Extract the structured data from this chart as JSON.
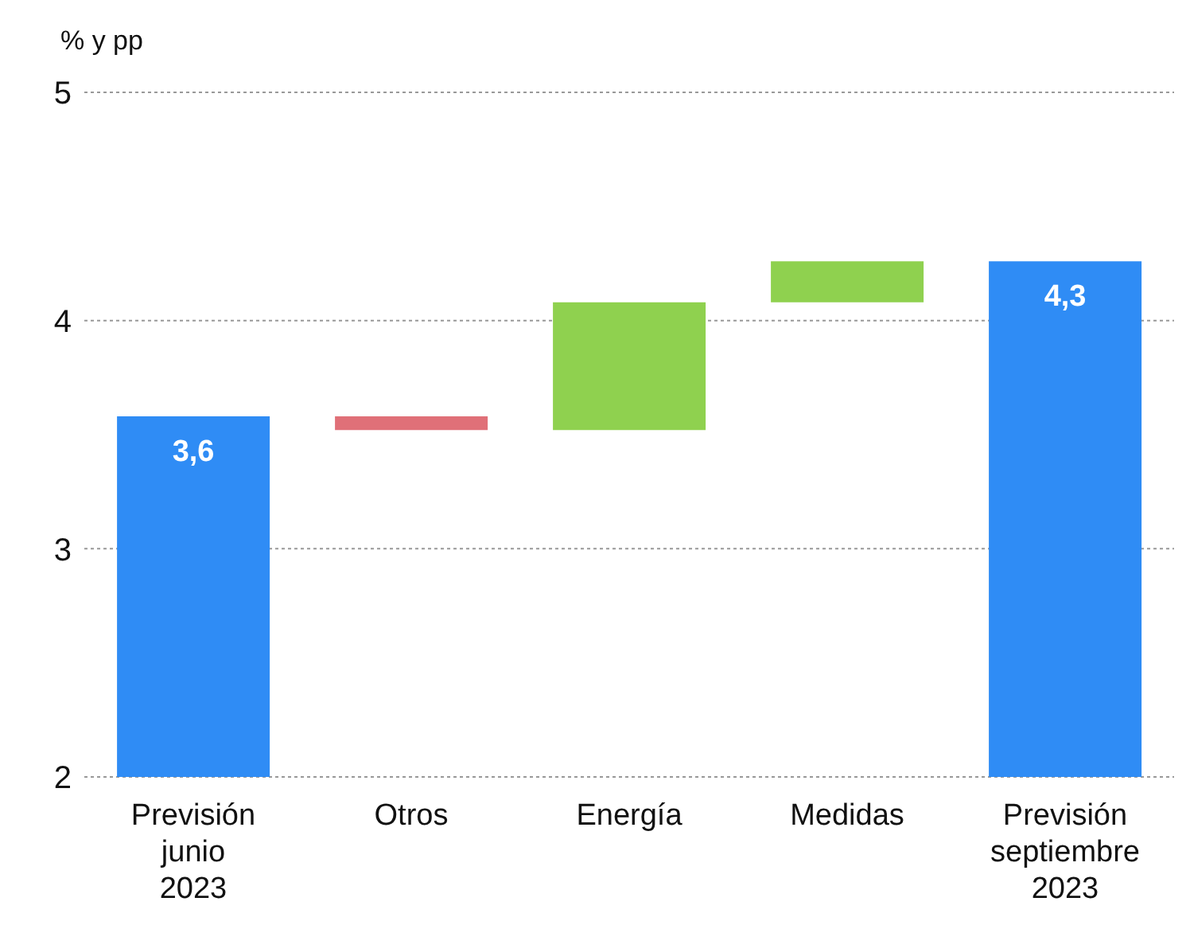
{
  "chart_data": {
    "type": "bar",
    "ylabel": "% y pp",
    "categories": [
      "Previsión junio 2023",
      "Otros",
      "Energía",
      "Medidas",
      "Previsión septiembre 2023"
    ],
    "base": [
      2,
      3.58,
      3.52,
      4.08,
      2
    ],
    "values": [
      1.58,
      -0.06,
      0.56,
      0.18,
      2.26
    ],
    "colors": [
      "#2f8cf5",
      "#e07078",
      "#8fd14f",
      "#8fd14f",
      "#2f8cf5"
    ],
    "value_labels": [
      "3,6",
      null,
      null,
      null,
      "4,3"
    ],
    "ylim": [
      2,
      5
    ],
    "yticks": [
      2,
      3,
      4,
      5
    ],
    "grid": "y"
  }
}
